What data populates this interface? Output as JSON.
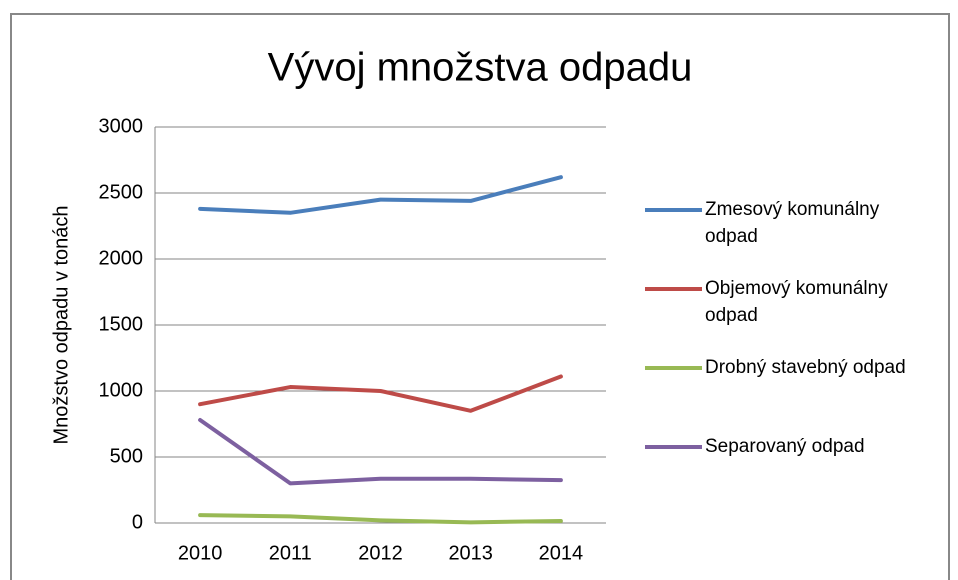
{
  "chart_data": {
    "type": "line",
    "title": "Vývoj množstva odpadu",
    "y_label": "Množstvo odpadu v tonách",
    "categories": [
      "2010",
      "2011",
      "2012",
      "2013",
      "2014"
    ],
    "series": [
      {
        "name": "Zmesový komunálny odpad",
        "color": "#4a7ebb",
        "values": [
          2380,
          2350,
          2450,
          2440,
          2620
        ]
      },
      {
        "name": "Objemový komunálny odpad",
        "color": "#be4b48",
        "values": [
          900,
          1030,
          1000,
          850,
          1110
        ]
      },
      {
        "name": "Drobný stavebný odpad",
        "color": "#98b954",
        "values": [
          60,
          50,
          20,
          5,
          15
        ]
      },
      {
        "name": "Separovaný odpad",
        "color": "#7d60a0",
        "values": [
          780,
          300,
          335,
          335,
          325
        ]
      }
    ],
    "ylim": [
      0,
      3000
    ],
    "yticks": [
      0,
      500,
      1000,
      1500,
      2000,
      2500,
      3000
    ],
    "grid": true,
    "legend": "right"
  }
}
